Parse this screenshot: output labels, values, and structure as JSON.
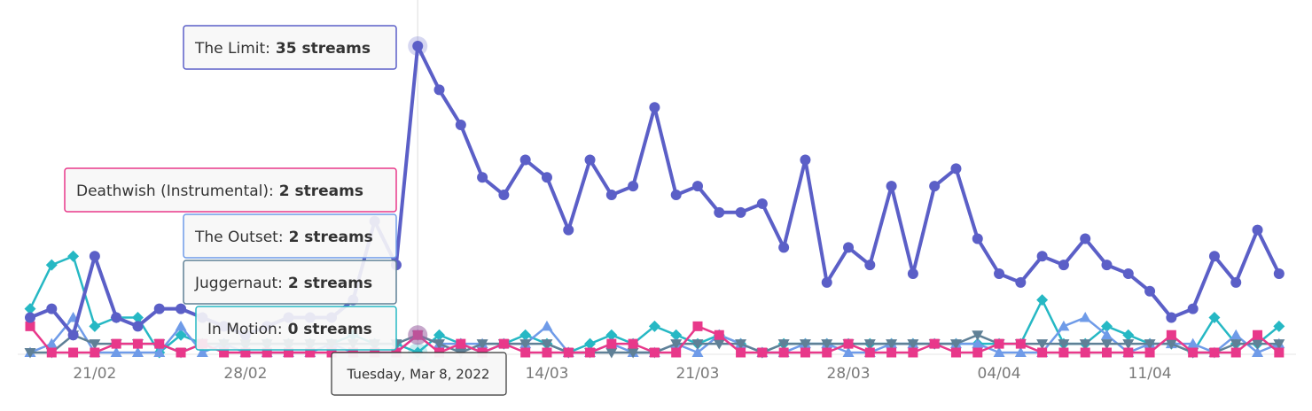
{
  "chart_data": {
    "type": "line",
    "categories": [
      null,
      null,
      null,
      "21/02",
      null,
      null,
      null,
      null,
      null,
      null,
      "28/02",
      null,
      null,
      null,
      null,
      null,
      null,
      null,
      null,
      null,
      null,
      null,
      null,
      null,
      "14/03",
      null,
      null,
      null,
      null,
      null,
      null,
      "21/03",
      null,
      null,
      null,
      null,
      null,
      null,
      "28/03",
      null,
      null,
      null,
      null,
      null,
      null,
      "04/04",
      null,
      null,
      null,
      null,
      null,
      null,
      "11/04",
      null,
      null,
      null,
      null,
      null,
      null
    ],
    "ylim": [
      0,
      35
    ],
    "series": [
      {
        "color": "#26b8c4",
        "marker": "diamond",
        "values": [
          5,
          10,
          11,
          3,
          4,
          4,
          0,
          2,
          1,
          1,
          1,
          1,
          1,
          1,
          1,
          2,
          1,
          1,
          0,
          2,
          1,
          0,
          1,
          2,
          1,
          0,
          1,
          2,
          1,
          3,
          2,
          1,
          2,
          1,
          0,
          1,
          1,
          1,
          1,
          1,
          1,
          1,
          1,
          1,
          1,
          1,
          1,
          6,
          1,
          1,
          3,
          2,
          1,
          1,
          0,
          4,
          1,
          1,
          3
        ]
      },
      {
        "color": "#6f9be8",
        "marker": "triangle-up",
        "values": [
          0,
          1,
          4,
          0,
          0,
          0,
          0,
          3,
          0,
          1,
          0,
          0,
          0,
          0,
          1,
          0,
          0,
          0,
          2,
          1,
          1,
          1,
          1,
          1,
          3,
          0,
          0,
          1,
          0,
          0,
          1,
          0,
          2,
          1,
          0,
          0,
          1,
          1,
          0,
          0,
          1,
          1,
          1,
          1,
          1,
          0,
          0,
          0,
          3,
          4,
          2,
          0,
          1,
          1,
          1,
          0,
          2,
          0,
          1
        ]
      },
      {
        "color": "#5f8096",
        "marker": "triangle-down",
        "values": [
          0,
          0,
          2,
          1,
          1,
          1,
          1,
          0,
          1,
          1,
          1,
          1,
          1,
          1,
          1,
          1,
          1,
          1,
          2,
          1,
          0,
          1,
          1,
          1,
          1,
          0,
          0,
          0,
          0,
          0,
          1,
          1,
          1,
          1,
          0,
          1,
          1,
          1,
          1,
          1,
          1,
          1,
          1,
          1,
          2,
          1,
          1,
          1,
          1,
          1,
          1,
          1,
          1,
          1,
          0,
          0,
          1,
          1,
          1
        ]
      },
      {
        "color": "#e8388a",
        "marker": "square",
        "values": [
          3,
          0,
          0,
          0,
          1,
          1,
          1,
          0,
          1,
          0,
          0,
          0,
          0,
          0,
          0,
          0,
          0,
          0,
          2,
          0,
          1,
          0,
          1,
          0,
          0,
          0,
          0,
          1,
          1,
          0,
          0,
          3,
          2,
          0,
          0,
          0,
          0,
          0,
          1,
          0,
          0,
          0,
          1,
          0,
          0,
          1,
          1,
          0,
          0,
          0,
          0,
          0,
          0,
          2,
          0,
          0,
          0,
          2,
          0
        ]
      },
      {
        "color": "#5b5fc7",
        "marker": "circle",
        "values": [
          4,
          5,
          2,
          11,
          4,
          3,
          5,
          5,
          4,
          3,
          2,
          3,
          4,
          4,
          4,
          6,
          15,
          10,
          35,
          30,
          26,
          20,
          18,
          22,
          20,
          14,
          22,
          18,
          19,
          28,
          18,
          19,
          16,
          16,
          17,
          12,
          22,
          8,
          12,
          10,
          19,
          9,
          19,
          21,
          13,
          9,
          8,
          11,
          10,
          13,
          10,
          9,
          7,
          4,
          5,
          11,
          8,
          14,
          9
        ]
      }
    ],
    "tooltips": [
      {
        "label": "The Limit:",
        "value": "35 streams",
        "color": "#5b5fc7"
      },
      {
        "label": "Deathwish (Instrumental):",
        "value": "2 streams",
        "color": "#e8388a"
      },
      {
        "label": "The Outset:",
        "value": "2 streams",
        "color": "#6f9be8"
      },
      {
        "label": "Juggernaut:",
        "value": "2 streams",
        "color": "#5f8096"
      },
      {
        "label": "In Motion:",
        "value": "0 streams",
        "color": "#26b8c4"
      }
    ],
    "tooltip_date": "Tuesday, Mar 8, 2022"
  }
}
